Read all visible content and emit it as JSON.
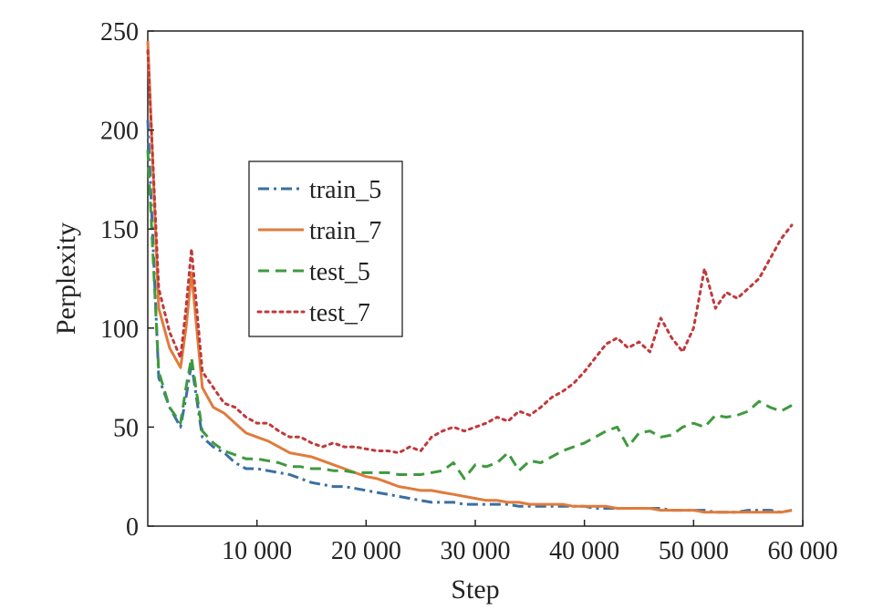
{
  "chart_data": {
    "type": "line",
    "title": "",
    "xlabel": "Step",
    "ylabel": "Perplexity",
    "xlim": [
      0,
      60000
    ],
    "ylim": [
      0,
      250
    ],
    "xticks": [
      10000,
      20000,
      30000,
      40000,
      50000,
      60000
    ],
    "xtick_labels": [
      "10 000",
      "20 000",
      "30 000",
      "40 000",
      "50 000",
      "60 000"
    ],
    "yticks": [
      0,
      50,
      100,
      150,
      200,
      250
    ],
    "ytick_labels": [
      "0",
      "50",
      "100",
      "150",
      "200",
      "250"
    ],
    "grid": false,
    "legend_position": "upper-left",
    "series": [
      {
        "name": "train_5",
        "color": "#3a6fa3",
        "style": "dashdot",
        "x": [
          0,
          1000,
          2000,
          3000,
          3500,
          4000,
          5000,
          6000,
          7000,
          8000,
          9000,
          10000,
          11000,
          12000,
          13000,
          14000,
          15000,
          16000,
          17000,
          18000,
          19000,
          20000,
          21000,
          22000,
          23000,
          24000,
          25000,
          26000,
          27000,
          28000,
          29000,
          30000,
          31000,
          32000,
          33000,
          34000,
          35000,
          36000,
          37000,
          38000,
          39000,
          40000,
          41000,
          42000,
          43000,
          44000,
          45000,
          46000,
          47000,
          48000,
          49000,
          50000,
          51000,
          52000,
          53000,
          54000,
          55000,
          56000,
          57000,
          58000,
          59000
        ],
        "y": [
          205,
          75,
          60,
          50,
          65,
          82,
          45,
          40,
          37,
          32,
          29,
          29,
          28,
          27,
          26,
          24,
          22,
          21,
          20,
          20,
          19,
          18,
          17,
          16,
          15,
          14,
          13,
          12,
          12,
          12,
          11,
          11,
          11,
          11,
          11,
          10,
          10,
          10,
          10,
          10,
          10,
          10,
          9,
          9,
          9,
          9,
          9,
          9,
          9,
          8,
          8,
          8,
          8,
          7,
          7,
          7,
          8,
          8,
          8,
          7,
          8
        ]
      },
      {
        "name": "train_7",
        "color": "#e07b3c",
        "style": "solid",
        "x": [
          0,
          1000,
          2000,
          3000,
          3500,
          4000,
          5000,
          6000,
          7000,
          8000,
          9000,
          10000,
          11000,
          12000,
          13000,
          14000,
          15000,
          16000,
          17000,
          18000,
          19000,
          20000,
          21000,
          22000,
          23000,
          24000,
          25000,
          26000,
          27000,
          28000,
          29000,
          30000,
          31000,
          32000,
          33000,
          34000,
          35000,
          36000,
          37000,
          38000,
          39000,
          40000,
          41000,
          42000,
          43000,
          44000,
          45000,
          46000,
          47000,
          48000,
          49000,
          50000,
          51000,
          52000,
          53000,
          54000,
          55000,
          56000,
          57000,
          58000,
          59000
        ],
        "y": [
          245,
          110,
          90,
          80,
          100,
          128,
          70,
          60,
          57,
          52,
          47,
          45,
          43,
          40,
          37,
          36,
          35,
          33,
          31,
          29,
          27,
          25,
          24,
          22,
          20,
          19,
          18,
          18,
          17,
          16,
          15,
          14,
          13,
          13,
          12,
          12,
          11,
          11,
          11,
          11,
          10,
          10,
          10,
          10,
          9,
          9,
          9,
          9,
          8,
          8,
          8,
          8,
          7,
          7,
          7,
          7,
          7,
          7,
          7,
          7,
          8
        ]
      },
      {
        "name": "test_5",
        "color": "#3e9a3e",
        "style": "dashed",
        "x": [
          0,
          1000,
          2000,
          3000,
          3500,
          4000,
          5000,
          6000,
          7000,
          8000,
          9000,
          10000,
          11000,
          12000,
          13000,
          14000,
          15000,
          16000,
          17000,
          18000,
          19000,
          20000,
          21000,
          22000,
          23000,
          24000,
          25000,
          26000,
          27000,
          28000,
          29000,
          30000,
          31000,
          32000,
          33000,
          34000,
          35000,
          36000,
          37000,
          38000,
          39000,
          40000,
          41000,
          42000,
          43000,
          44000,
          45000,
          46000,
          47000,
          48000,
          49000,
          50000,
          51000,
          52000,
          53000,
          54000,
          55000,
          56000,
          57000,
          58000,
          59000
        ],
        "y": [
          190,
          78,
          60,
          52,
          70,
          85,
          48,
          42,
          38,
          36,
          34,
          34,
          33,
          32,
          30,
          30,
          29,
          29,
          28,
          28,
          27,
          27,
          27,
          27,
          26,
          26,
          26,
          27,
          28,
          32,
          24,
          31,
          30,
          32,
          37,
          28,
          33,
          32,
          35,
          38,
          40,
          42,
          45,
          48,
          50,
          40,
          47,
          48,
          45,
          46,
          50,
          52,
          50,
          56,
          55,
          56,
          58,
          63,
          60,
          58,
          61
        ]
      },
      {
        "name": "test_7",
        "color": "#c0393b",
        "style": "dotted",
        "x": [
          0,
          1000,
          2000,
          3000,
          3500,
          4000,
          5000,
          6000,
          7000,
          8000,
          9000,
          10000,
          11000,
          12000,
          13000,
          14000,
          15000,
          16000,
          17000,
          18000,
          19000,
          20000,
          21000,
          22000,
          23000,
          24000,
          25000,
          26000,
          27000,
          28000,
          29000,
          30000,
          31000,
          32000,
          33000,
          34000,
          35000,
          36000,
          37000,
          38000,
          39000,
          40000,
          41000,
          42000,
          43000,
          44000,
          45000,
          46000,
          47000,
          48000,
          49000,
          50000,
          51000,
          52000,
          53000,
          54000,
          55000,
          56000,
          57000,
          58000,
          59000
        ],
        "y": [
          240,
          120,
          98,
          85,
          110,
          140,
          78,
          70,
          62,
          60,
          55,
          52,
          52,
          48,
          45,
          45,
          42,
          40,
          42,
          40,
          40,
          39,
          38,
          38,
          37,
          40,
          38,
          45,
          48,
          50,
          48,
          50,
          52,
          55,
          53,
          58,
          56,
          60,
          65,
          68,
          72,
          78,
          85,
          92,
          95,
          90,
          93,
          88,
          105,
          95,
          88,
          100,
          130,
          110,
          118,
          115,
          120,
          125,
          135,
          145,
          152
        ]
      }
    ]
  }
}
